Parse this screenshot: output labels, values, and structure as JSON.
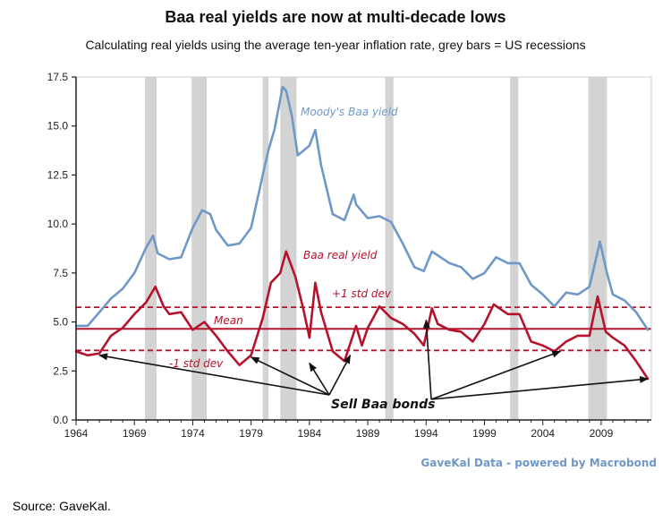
{
  "chart_data": {
    "type": "line",
    "title": "Baa real yields are now at multi-decade lows",
    "subtitle": "Calculating real yields using the average ten-year inflation rate, grey bars = US recessions",
    "xlim": [
      1964,
      2013.3
    ],
    "ylim": [
      0,
      17.5
    ],
    "x_ticks": [
      1964,
      1969,
      1974,
      1979,
      1984,
      1989,
      1994,
      1999,
      2004,
      2009
    ],
    "y_ticks": [
      0.0,
      2.5,
      5.0,
      7.5,
      10.0,
      12.5,
      15.0,
      17.5
    ],
    "x_tick_labels": [
      "1964",
      "1969",
      "1974",
      "1979",
      "1984",
      "1989",
      "1994",
      "1999",
      "2004",
      "2009"
    ],
    "y_tick_labels": [
      "0.0",
      "2.5",
      "5.0",
      "7.5",
      "10.0",
      "12.5",
      "15.0",
      "17.5"
    ],
    "recessions": [
      [
        1969.9,
        1970.9
      ],
      [
        1973.9,
        1975.2
      ],
      [
        1980.0,
        1980.5
      ],
      [
        1981.5,
        1982.9
      ],
      [
        1990.5,
        1991.2
      ],
      [
        2001.2,
        2001.9
      ],
      [
        2007.9,
        2009.5
      ]
    ],
    "series": [
      {
        "name": "Moody's Baa yield",
        "color": "#6f98c8",
        "x": [
          1964.0,
          1965.0,
          1966.0,
          1967.0,
          1968.0,
          1969.0,
          1970.0,
          1970.6,
          1971.0,
          1972.0,
          1973.0,
          1974.0,
          1974.8,
          1975.5,
          1976.0,
          1977.0,
          1978.0,
          1979.0,
          1980.0,
          1980.5,
          1981.0,
          1981.7,
          1982.0,
          1982.5,
          1983.0,
          1984.0,
          1984.5,
          1985.0,
          1986.0,
          1987.0,
          1987.8,
          1988.0,
          1989.0,
          1990.0,
          1991.0,
          1992.0,
          1993.0,
          1993.8,
          1994.5,
          1995.0,
          1996.0,
          1997.0,
          1998.0,
          1999.0,
          2000.0,
          2001.0,
          2002.0,
          2003.0,
          2004.0,
          2005.0,
          2006.0,
          2007.0,
          2008.0,
          2008.9,
          2009.5,
          2010.0,
          2011.0,
          2012.0,
          2013.0
        ],
        "y": [
          4.8,
          4.8,
          5.5,
          6.2,
          6.7,
          7.5,
          8.8,
          9.4,
          8.5,
          8.2,
          8.3,
          9.8,
          10.7,
          10.5,
          9.7,
          8.9,
          9.0,
          9.8,
          12.5,
          13.8,
          14.8,
          17.0,
          16.8,
          15.5,
          13.5,
          14.0,
          14.8,
          13.0,
          10.5,
          10.2,
          11.5,
          11.0,
          10.3,
          10.4,
          10.1,
          9.0,
          7.8,
          7.6,
          8.6,
          8.4,
          8.0,
          7.8,
          7.2,
          7.5,
          8.3,
          8.0,
          8.0,
          6.9,
          6.4,
          5.8,
          6.5,
          6.4,
          6.8,
          9.1,
          7.5,
          6.4,
          6.1,
          5.5,
          4.6
        ]
      },
      {
        "name": "Baa real yield",
        "color": "#b5132c",
        "x": [
          1964.0,
          1965.0,
          1966.0,
          1967.0,
          1968.0,
          1969.0,
          1970.0,
          1970.8,
          1971.5,
          1972.0,
          1973.0,
          1974.0,
          1975.0,
          1976.0,
          1977.0,
          1978.0,
          1979.0,
          1980.0,
          1980.7,
          1981.5,
          1982.0,
          1982.8,
          1983.5,
          1984.0,
          1984.5,
          1985.0,
          1986.0,
          1987.0,
          1988.0,
          1988.5,
          1989.0,
          1990.0,
          1991.0,
          1992.0,
          1993.0,
          1993.8,
          1994.5,
          1995.0,
          1996.0,
          1997.0,
          1998.0,
          1999.0,
          1999.8,
          2001.0,
          2002.0,
          2003.0,
          2004.0,
          2005.0,
          2006.0,
          2007.0,
          2008.0,
          2008.7,
          2009.4,
          2010.0,
          2011.0,
          2012.0,
          2013.0
        ],
        "y": [
          3.5,
          3.3,
          3.4,
          4.3,
          4.7,
          5.4,
          6.0,
          6.8,
          5.8,
          5.4,
          5.5,
          4.6,
          5.0,
          4.3,
          3.5,
          2.8,
          3.3,
          5.2,
          7.0,
          7.5,
          8.6,
          7.3,
          5.6,
          4.2,
          7.0,
          5.5,
          3.5,
          3.0,
          4.8,
          3.8,
          4.7,
          5.8,
          5.2,
          4.9,
          4.4,
          3.8,
          5.7,
          4.9,
          4.6,
          4.5,
          4.0,
          4.9,
          5.9,
          5.4,
          5.4,
          4.0,
          3.8,
          3.5,
          4.0,
          4.3,
          4.3,
          6.3,
          4.5,
          4.2,
          3.8,
          3.0,
          2.1
        ]
      }
    ],
    "mean": 4.65,
    "plus_1_std": 5.75,
    "minus_1_std": 3.55,
    "annotations": {
      "blue_series_label": "Moody's Baa yield",
      "red_series_label": "Baa real yield",
      "plus_std_label": "+1 std dev",
      "mean_label": "Mean",
      "minus_std_label": "-1 std dev",
      "sell_label": "Sell Baa bonds",
      "sell_arrow_targets": [
        [
          1966.0,
          3.3
        ],
        [
          1979.0,
          3.2
        ],
        [
          1984.0,
          2.9
        ],
        [
          1987.5,
          3.3
        ],
        [
          1994.0,
          5.1
        ],
        [
          2005.5,
          3.5
        ],
        [
          2013.0,
          2.1
        ]
      ]
    },
    "credit": "GaveKal Data - powered by Macrobond",
    "colors": {
      "recession": "#d3d3d3",
      "blue": "#6f98c8",
      "red": "#b5132c",
      "axis": "#222222"
    }
  },
  "source": "Source:  GaveKal."
}
